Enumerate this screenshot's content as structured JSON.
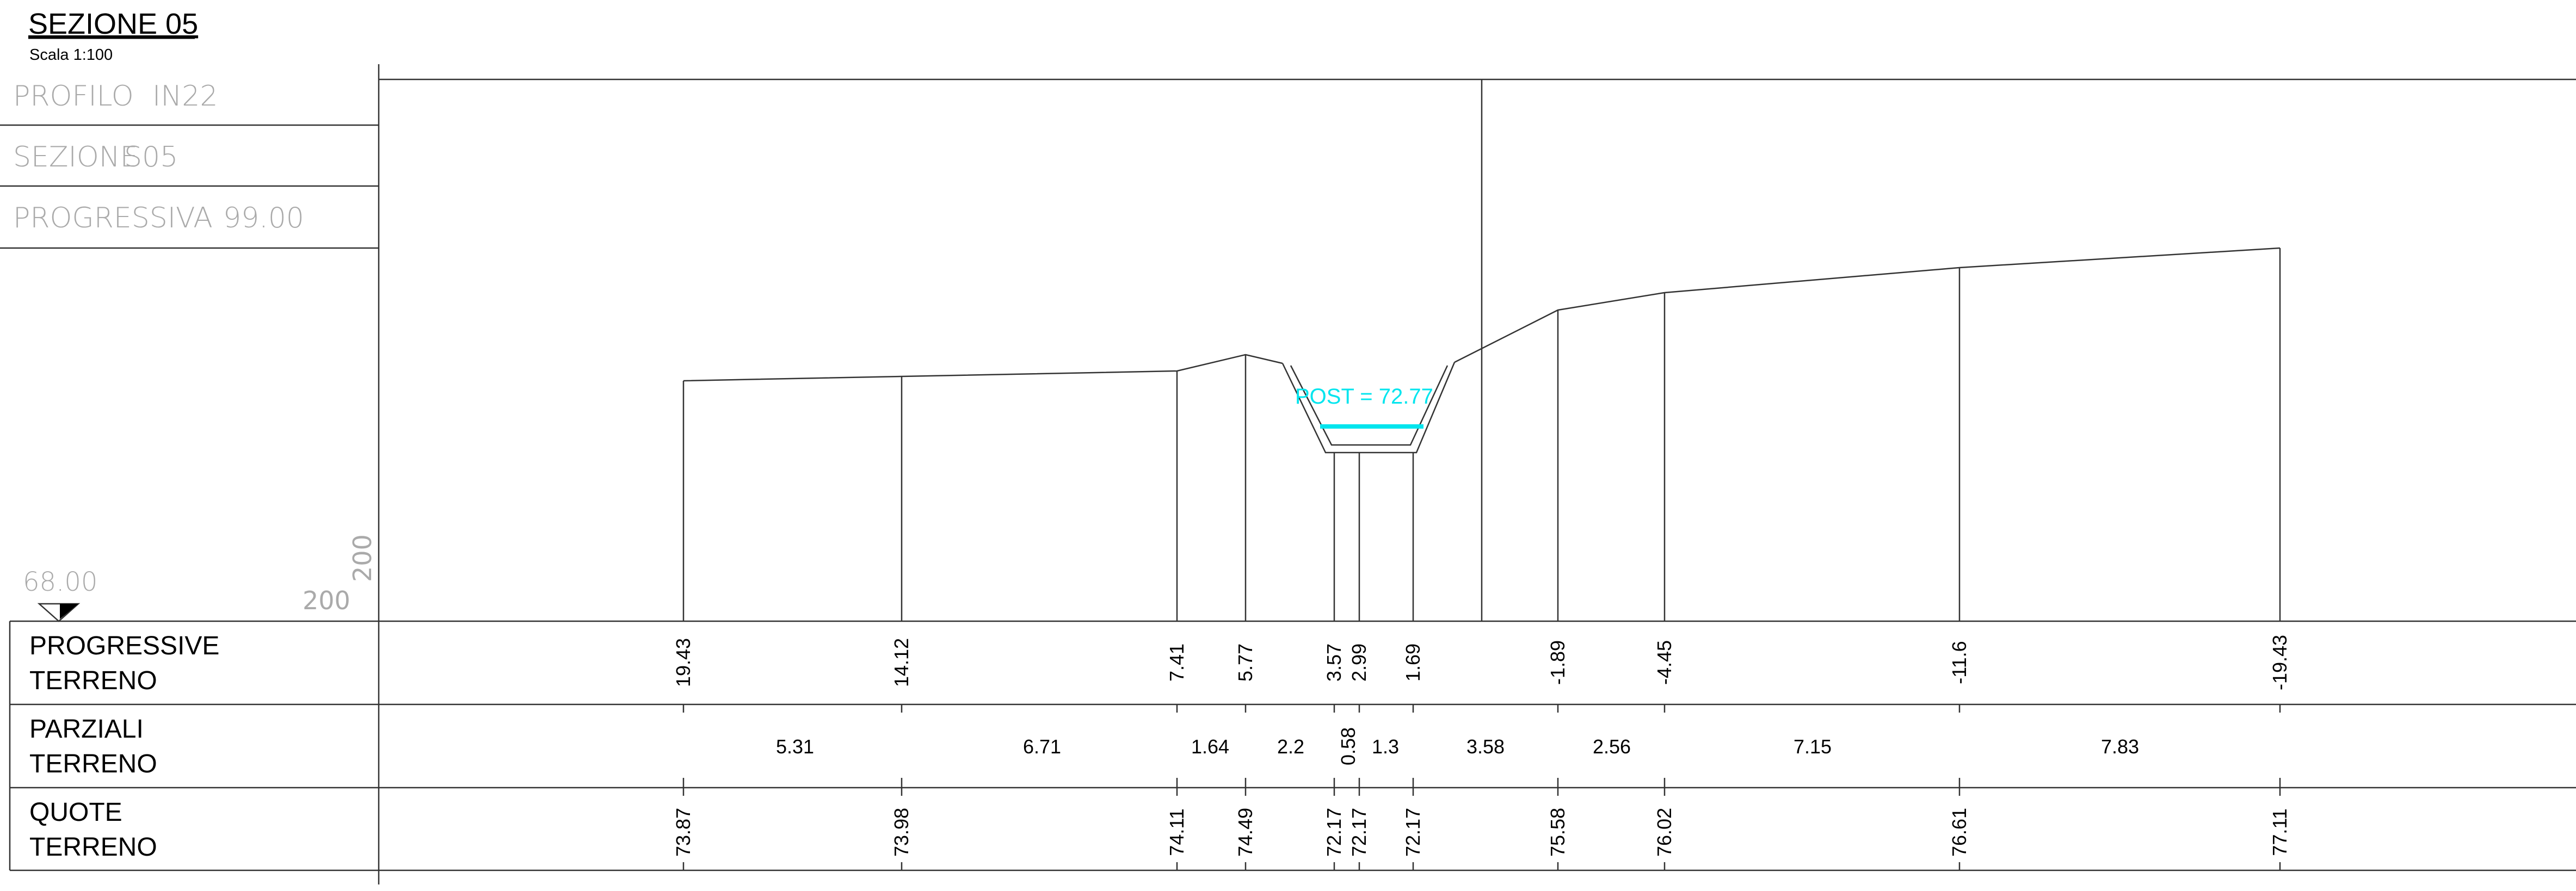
{
  "title": "SEZIONE 05",
  "scale": "Scala 1:100",
  "info": [
    {
      "label": "PROFILO",
      "value": "IN22"
    },
    {
      "label": "SEZIONE",
      "value": "S05"
    },
    {
      "label": "PROGRESSIVA",
      "value": "99.00"
    }
  ],
  "datum": {
    "elevation": "68.00",
    "h_scale": "200",
    "v_scale": "200"
  },
  "water_level_label": "POST = 72.77",
  "colors": {
    "line": "#333333",
    "water": "#00e5ee",
    "text": "#000000",
    "light_text": "#aaaaaa"
  },
  "rows": [
    {
      "line1": "PROGRESSIVE",
      "line2": "TERRENO"
    },
    {
      "line1": "PARZIALI",
      "line2": "TERRENO"
    },
    {
      "line1": "QUOTE",
      "line2": "TERRENO"
    }
  ],
  "progressive": [
    "19.43",
    "14.12",
    "7.41",
    "5.77",
    "3.57",
    "2.99",
    "1.69",
    "-1.89",
    "-4.45",
    "-11.6",
    "-19.43"
  ],
  "parziali": [
    "5.31",
    "6.71",
    "1.64",
    "2.2",
    "0.58",
    "1.3",
    "3.58",
    "2.56",
    "7.15",
    "7.83"
  ],
  "quote": [
    "73.87",
    "73.98",
    "74.11",
    "74.49",
    "72.17",
    "72.17",
    "72.17",
    "75.58",
    "76.02",
    "76.61",
    "77.11"
  ]
}
